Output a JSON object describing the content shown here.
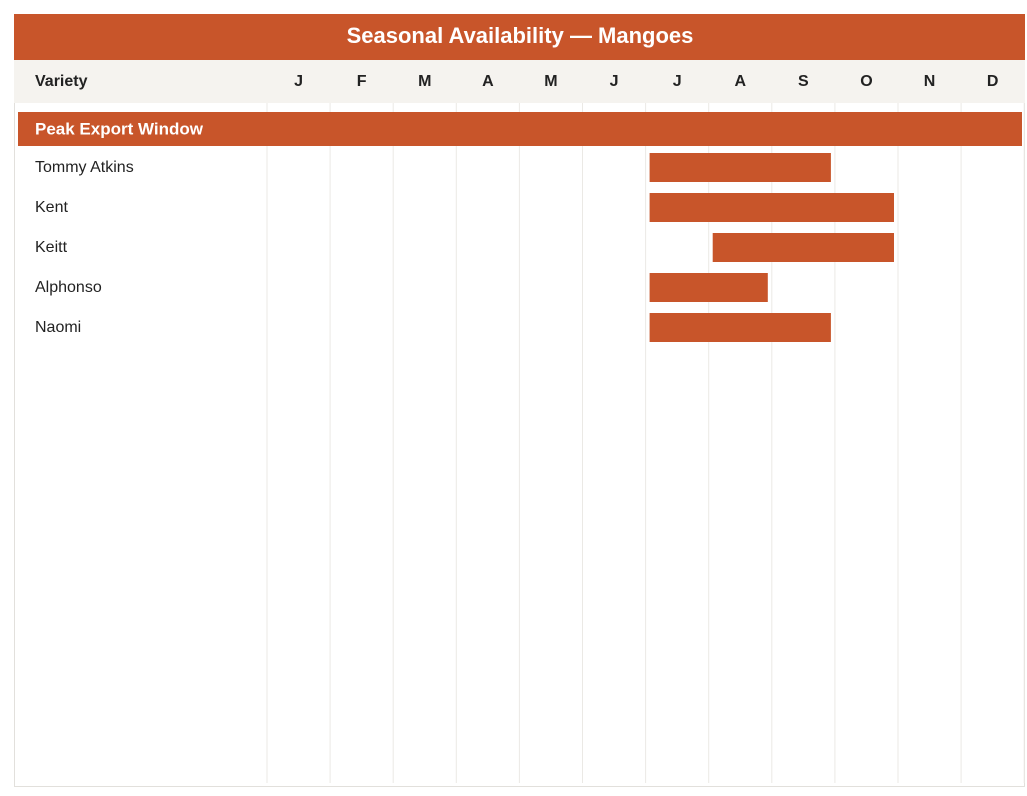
{
  "chart_data": {
    "type": "gantt",
    "title": "Seasonal Availability — Mangoes",
    "row_header": "Variety",
    "categories": [
      "J",
      "F",
      "M",
      "A",
      "M",
      "J",
      "J",
      "A",
      "S",
      "O",
      "N",
      "D"
    ],
    "group": "Peak Export Window",
    "color": "#c8552a",
    "tasks": [
      {
        "name": "Tommy Atkins",
        "start": 7,
        "end": 9
      },
      {
        "name": "Kent",
        "start": 7,
        "end": 10
      },
      {
        "name": "Keitt",
        "start": 8,
        "end": 10
      },
      {
        "name": "Alphonso",
        "start": 7,
        "end": 8
      },
      {
        "name": "Naomi",
        "start": 7,
        "end": 9
      }
    ]
  }
}
